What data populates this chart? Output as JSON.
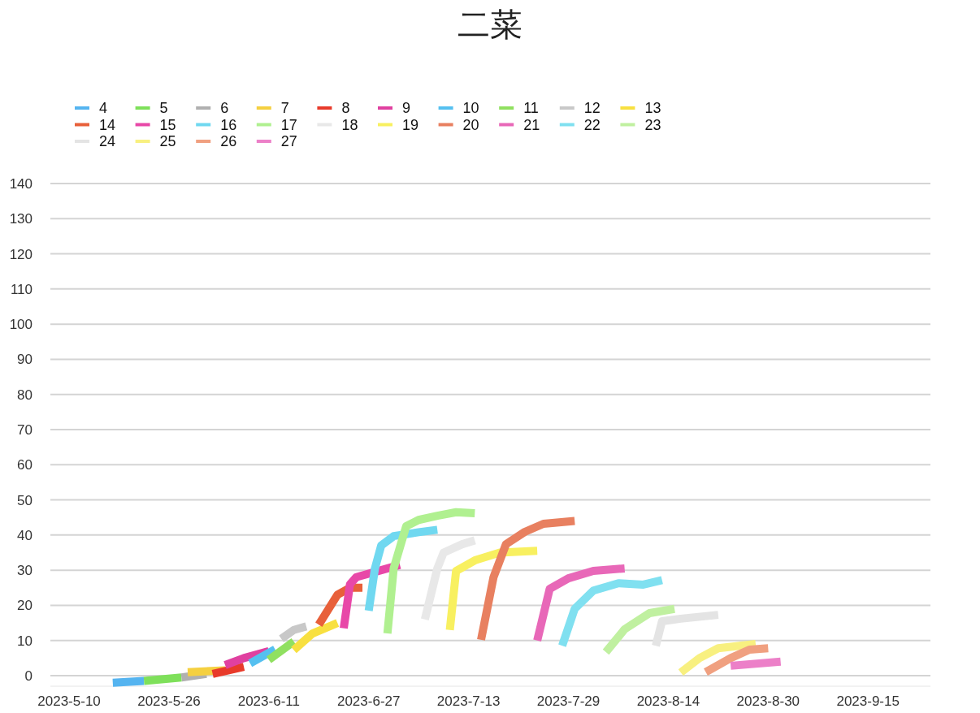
{
  "chart_data": {
    "type": "line",
    "title": "二菜",
    "legend": "top left",
    "grid": "y",
    "marker": "none",
    "line_style": "solid",
    "xlim": [
      "2023-05-07",
      "2023-09-25"
    ],
    "ylim": [
      -3,
      140
    ],
    "xticks": [
      {
        "value": "2023-05-10",
        "label": "2023-5-10"
      },
      {
        "value": "2023-05-26",
        "label": "2023-5-26"
      },
      {
        "value": "2023-06-11",
        "label": "2023-6-11"
      },
      {
        "value": "2023-06-27",
        "label": "2023-6-27"
      },
      {
        "value": "2023-07-13",
        "label": "2023-7-13"
      },
      {
        "value": "2023-07-29",
        "label": "2023-7-29"
      },
      {
        "value": "2023-08-14",
        "label": "2023-8-14"
      },
      {
        "value": "2023-08-30",
        "label": "2023-8-30"
      },
      {
        "value": "2023-09-15",
        "label": "2023-9-15"
      }
    ],
    "yticks": [
      0,
      10,
      20,
      30,
      40,
      50,
      60,
      70,
      80,
      90,
      100,
      110,
      120,
      130,
      140
    ],
    "series": [
      {
        "name": "4",
        "color": "#55b4f0",
        "x": [
          "2023-05-17",
          "2023-05-22"
        ],
        "values": [
          -2,
          -1.5
        ]
      },
      {
        "name": "5",
        "color": "#7ee05a",
        "x": [
          "2023-05-22",
          "2023-05-28"
        ],
        "values": [
          -1.5,
          -0.5
        ]
      },
      {
        "name": "6",
        "color": "#b0b0b0",
        "x": [
          "2023-05-28",
          "2023-06-01"
        ],
        "values": [
          -0.5,
          0.5
        ]
      },
      {
        "name": "7",
        "color": "#f5d040",
        "x": [
          "2023-05-29",
          "2023-06-04"
        ],
        "values": [
          1,
          1.5
        ]
      },
      {
        "name": "8",
        "color": "#e83a2a",
        "x": [
          "2023-06-02",
          "2023-06-07"
        ],
        "values": [
          0.5,
          2.5
        ]
      },
      {
        "name": "9",
        "color": "#e040a0",
        "x": [
          "2023-06-04",
          "2023-06-07",
          "2023-06-11"
        ],
        "values": [
          3,
          5,
          7
        ]
      },
      {
        "name": "10",
        "color": "#55c0f0",
        "x": [
          "2023-06-08",
          "2023-06-12"
        ],
        "values": [
          3.5,
          7.5
        ]
      },
      {
        "name": "11",
        "color": "#90e060",
        "x": [
          "2023-06-11",
          "2023-06-15"
        ],
        "values": [
          4.5,
          9.7
        ]
      },
      {
        "name": "12",
        "color": "#c8c8c8",
        "x": [
          "2023-06-13",
          "2023-06-15",
          "2023-06-17"
        ],
        "values": [
          10.5,
          13,
          14
        ]
      },
      {
        "name": "13",
        "color": "#f8e040",
        "x": [
          "2023-06-15",
          "2023-06-18",
          "2023-06-22"
        ],
        "values": [
          7.3,
          12,
          15
        ]
      },
      {
        "name": "14",
        "color": "#e8603a",
        "x": [
          "2023-06-19",
          "2023-06-22",
          "2023-06-24",
          "2023-06-26"
        ],
        "values": [
          14.5,
          23,
          25,
          25
        ]
      },
      {
        "name": "15",
        "color": "#e848a8",
        "x": [
          "2023-06-23",
          "2023-06-24",
          "2023-06-25",
          "2023-06-29",
          "2023-07-02"
        ],
        "values": [
          13.5,
          26,
          28,
          30,
          31.5
        ]
      },
      {
        "name": "16",
        "color": "#70d8f0",
        "x": [
          "2023-06-27",
          "2023-06-28",
          "2023-06-29",
          "2023-07-01",
          "2023-07-05",
          "2023-07-08"
        ],
        "values": [
          18.5,
          30.5,
          37,
          39.7,
          40.8,
          41.5
        ]
      },
      {
        "name": "17",
        "color": "#b0f090",
        "x": [
          "2023-06-30",
          "2023-07-01",
          "2023-07-03",
          "2023-07-05",
          "2023-07-08",
          "2023-07-11",
          "2023-07-14"
        ],
        "values": [
          12,
          30.5,
          42.5,
          44.3,
          45.5,
          46.5,
          46.2
        ]
      },
      {
        "name": "18",
        "color": "#e8e8e8",
        "x": [
          "2023-07-06",
          "2023-07-08",
          "2023-07-09",
          "2023-07-12",
          "2023-07-14"
        ],
        "values": [
          16,
          30.5,
          35,
          37.4,
          38.5
        ]
      },
      {
        "name": "19",
        "color": "#f8f060",
        "x": [
          "2023-07-10",
          "2023-07-11",
          "2023-07-14",
          "2023-07-18",
          "2023-07-24"
        ],
        "values": [
          13,
          29.8,
          32.8,
          35,
          35.5
        ]
      },
      {
        "name": "20",
        "color": "#e88060",
        "x": [
          "2023-07-15",
          "2023-07-17",
          "2023-07-19",
          "2023-07-22",
          "2023-07-25",
          "2023-07-30"
        ],
        "values": [
          10.2,
          28,
          37.4,
          40.9,
          43.2,
          44
        ]
      },
      {
        "name": "21",
        "color": "#e868b8",
        "x": [
          "2023-07-24",
          "2023-07-26",
          "2023-07-29",
          "2023-08-02",
          "2023-08-07"
        ],
        "values": [
          10,
          24.7,
          27.7,
          29.8,
          30.5
        ]
      },
      {
        "name": "22",
        "color": "#80e0f0",
        "x": [
          "2023-07-28",
          "2023-07-30",
          "2023-08-02",
          "2023-08-06",
          "2023-08-10",
          "2023-08-13"
        ],
        "values": [
          8.5,
          19,
          24.2,
          26.3,
          25.9,
          27.2
        ]
      },
      {
        "name": "23",
        "color": "#c0f0a0",
        "x": [
          "2023-08-04",
          "2023-08-07",
          "2023-08-11",
          "2023-08-15"
        ],
        "values": [
          6.7,
          13.2,
          17.8,
          19
        ]
      },
      {
        "name": "24",
        "color": "#e4e4e4",
        "x": [
          "2023-08-12",
          "2023-08-13",
          "2023-08-16",
          "2023-08-22"
        ],
        "values": [
          8.5,
          15.5,
          16.2,
          17.3
        ]
      },
      {
        "name": "25",
        "color": "#f8f080",
        "x": [
          "2023-08-16",
          "2023-08-19",
          "2023-08-22",
          "2023-08-28"
        ],
        "values": [
          0.9,
          5,
          7.8,
          9
        ]
      },
      {
        "name": "26",
        "color": "#f0a080",
        "x": [
          "2023-08-20",
          "2023-08-24",
          "2023-08-27",
          "2023-08-30"
        ],
        "values": [
          1,
          5,
          7.4,
          7.8
        ]
      },
      {
        "name": "27",
        "color": "#ec80c8",
        "x": [
          "2023-08-24",
          "2023-09-01"
        ],
        "values": [
          2.8,
          4
        ]
      }
    ]
  }
}
